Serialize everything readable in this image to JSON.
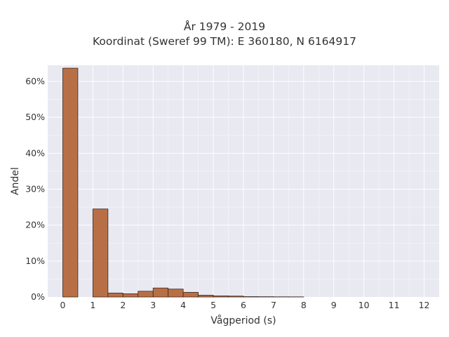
{
  "chart_data": {
    "type": "bar",
    "title": "År 1979 - 2019",
    "subtitle": "Koordinat (Sweref 99 TM): E 360180, N 6164917",
    "xlabel": "Vågperiod (s)",
    "ylabel": "Andel",
    "xlim": [
      -0.5,
      12.5
    ],
    "ylim": [
      0,
      64.5
    ],
    "x_ticks": [
      0,
      1,
      2,
      3,
      4,
      5,
      6,
      7,
      8,
      9,
      10,
      11,
      12
    ],
    "y_ticks": [
      0,
      10,
      20,
      30,
      40,
      50,
      60
    ],
    "y_tick_labels": [
      "0%",
      "10%",
      "20%",
      "30%",
      "40%",
      "50%",
      "60%"
    ],
    "bin_width": 0.5,
    "bins": [
      {
        "x0": 0.0,
        "value": 63.7
      },
      {
        "x0": 0.5,
        "value": 0
      },
      {
        "x0": 1.0,
        "value": 24.5
      },
      {
        "x0": 1.5,
        "value": 1.1
      },
      {
        "x0": 2.0,
        "value": 0.9
      },
      {
        "x0": 2.5,
        "value": 1.6
      },
      {
        "x0": 3.0,
        "value": 2.5
      },
      {
        "x0": 3.5,
        "value": 2.2
      },
      {
        "x0": 4.0,
        "value": 1.3
      },
      {
        "x0": 4.5,
        "value": 0.5
      },
      {
        "x0": 5.0,
        "value": 0.3
      },
      {
        "x0": 5.5,
        "value": 0.25
      },
      {
        "x0": 6.0,
        "value": 0.1
      },
      {
        "x0": 6.5,
        "value": 0.08
      },
      {
        "x0": 7.0,
        "value": 0.05
      },
      {
        "x0": 7.5,
        "value": 0.04
      }
    ],
    "grid": true,
    "colors": {
      "bar_fill": "#b96f45",
      "bar_stroke": "#3a2a22",
      "plot_bg": "#e8e9f1",
      "grid": "#ffffff"
    }
  }
}
